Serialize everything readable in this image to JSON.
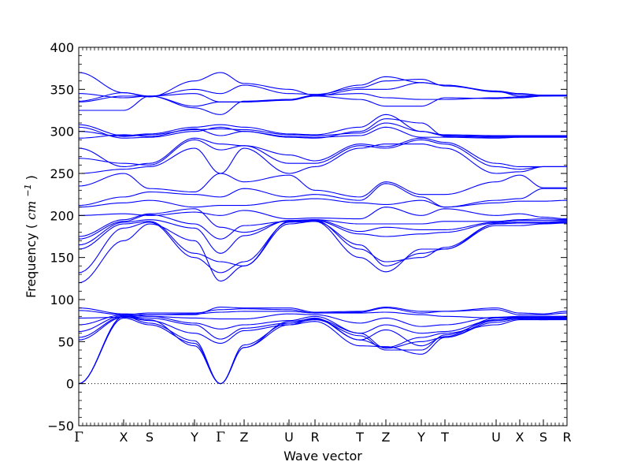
{
  "chart_data": {
    "type": "line",
    "title": "",
    "xlabel": "Wave vector",
    "ylabel": "Frequency",
    "ylabel_unit": "cm",
    "ylabel_unit_exponent": "−1",
    "ylim": [
      -50,
      400
    ],
    "yticks": [
      -50,
      0,
      50,
      100,
      150,
      200,
      250,
      300,
      350,
      400
    ],
    "ytick_labels": [
      "−50",
      "0",
      "50",
      "100",
      "150",
      "200",
      "250",
      "300",
      "350",
      "400"
    ],
    "zero_line": true,
    "grid": false,
    "line_color": "#0000ff",
    "high_symmetry_points": [
      {
        "label": "Γ",
        "x": 0.0
      },
      {
        "label": "X",
        "x": 0.57
      },
      {
        "label": "S",
        "x": 0.9
      },
      {
        "label": "Y",
        "x": 1.47
      },
      {
        "label": "Γ",
        "x": 1.8
      },
      {
        "label": "Z",
        "x": 2.1
      },
      {
        "label": "U",
        "x": 2.67
      },
      {
        "label": "R",
        "x": 3.0
      },
      {
        "label": "T",
        "x": 3.57
      },
      {
        "label": "Z",
        "x": 3.9
      },
      {
        "label": "Y",
        "x": 4.35
      },
      {
        "label": "T",
        "x": 4.65
      },
      {
        "label": "U",
        "x": 5.3
      },
      {
        "label": "X",
        "x": 5.6
      },
      {
        "label": "S",
        "x": 5.9
      },
      {
        "label": "R",
        "x": 6.2
      }
    ],
    "series": [
      {
        "values": [
          0,
          78,
          70,
          48,
          0,
          43,
          70,
          77,
          52,
          43,
          55,
          60,
          70,
          76,
          76,
          76
        ]
      },
      {
        "values": [
          0,
          80,
          72,
          51,
          0,
          46,
          72,
          76,
          57,
          40,
          40,
          58,
          76,
          78,
          77,
          77
        ]
      },
      {
        "values": [
          0,
          80,
          76,
          45,
          0,
          43,
          74,
          77,
          60,
          42,
          50,
          55,
          75,
          78,
          77,
          78
        ]
      },
      {
        "values": [
          52,
          79,
          75,
          60,
          48,
          63,
          70,
          74,
          45,
          44,
          35,
          55,
          73,
          77,
          76,
          77
        ]
      },
      {
        "values": [
          55,
          80,
          78,
          70,
          53,
          66,
          72,
          78,
          52,
          64,
          45,
          56,
          78,
          79,
          78,
          78
        ]
      },
      {
        "values": [
          62,
          81,
          80,
          72,
          65,
          70,
          75,
          80,
          60,
          70,
          60,
          62,
          76,
          79,
          79,
          79
        ]
      },
      {
        "values": [
          70,
          82,
          80,
          78,
          77,
          77,
          83,
          82,
          72,
          78,
          68,
          70,
          79,
          80,
          80,
          80
        ]
      },
      {
        "values": [
          78,
          79,
          82,
          83,
          85,
          86,
          86,
          84,
          84,
          85,
          82,
          80,
          78,
          80,
          80,
          80
        ]
      },
      {
        "values": [
          87,
          82,
          84,
          84,
          88,
          89,
          88,
          84,
          85,
          90,
          84,
          86,
          88,
          82,
          82,
          84
        ]
      },
      {
        "values": [
          90,
          83,
          82,
          82,
          91,
          90,
          90,
          85,
          86,
          91,
          86,
          86,
          90,
          84,
          83,
          86
        ]
      },
      {
        "values": [
          120,
          170,
          190,
          170,
          122,
          140,
          190,
          193,
          165,
          140,
          155,
          160,
          190,
          191,
          191,
          191
        ]
      },
      {
        "values": [
          132,
          185,
          192,
          150,
          132,
          145,
          192,
          193,
          150,
          133,
          160,
          160,
          188,
          188,
          190,
          191
        ]
      },
      {
        "values": [
          160,
          190,
          193,
          155,
          145,
          140,
          193,
          194,
          160,
          145,
          150,
          162,
          190,
          191,
          191,
          192
        ]
      },
      {
        "values": [
          165,
          192,
          195,
          185,
          155,
          176,
          194,
          194,
          178,
          175,
          178,
          180,
          191,
          192,
          192,
          193
        ]
      },
      {
        "values": [
          172,
          193,
          201,
          190,
          172,
          188,
          193,
          195,
          181,
          186,
          183,
          183,
          192,
          194,
          194,
          194
        ]
      },
      {
        "values": [
          175,
          195,
          202,
          208,
          186,
          180,
          194,
          195,
          190,
          190,
          190,
          193,
          193,
          195,
          196,
          195
        ]
      },
      {
        "values": [
          200,
          202,
          200,
          204,
          200,
          206,
          196,
          197,
          196,
          210,
          200,
          208,
          200,
          202,
          198,
          196
        ]
      },
      {
        "values": [
          210,
          215,
          218,
          210,
          212,
          212,
          218,
          220,
          215,
          213,
          218,
          210,
          215,
          217,
          217,
          218
        ]
      },
      {
        "values": [
          212,
          222,
          228,
          225,
          222,
          232,
          222,
          225,
          218,
          238,
          222,
          210,
          218,
          220,
          232,
          232
        ]
      },
      {
        "values": [
          235,
          250,
          232,
          228,
          250,
          240,
          248,
          230,
          222,
          240,
          225,
          225,
          240,
          248,
          233,
          233
        ]
      },
      {
        "values": [
          250,
          255,
          258,
          280,
          250,
          280,
          250,
          258,
          280,
          285,
          285,
          280,
          250,
          252,
          258,
          258
        ]
      },
      {
        "values": [
          268,
          262,
          260,
          290,
          278,
          283,
          262,
          262,
          283,
          280,
          290,
          285,
          258,
          255,
          258,
          258
        ]
      },
      {
        "values": [
          280,
          258,
          262,
          292,
          285,
          283,
          272,
          265,
          285,
          282,
          292,
          287,
          262,
          258,
          258,
          258
        ]
      },
      {
        "values": [
          292,
          296,
          294,
          303,
          295,
          300,
          294,
          293,
          295,
          305,
          293,
          293,
          292,
          293,
          293,
          293
        ]
      },
      {
        "values": [
          300,
          294,
          296,
          302,
          303,
          302,
          296,
          295,
          298,
          310,
          300,
          295,
          294,
          294,
          294,
          294
        ]
      },
      {
        "values": [
          305,
          292,
          293,
          300,
          305,
          300,
          293,
          292,
          300,
          315,
          310,
          294,
          293,
          293,
          293,
          293
        ]
      },
      {
        "values": [
          308,
          295,
          297,
          305,
          308,
          305,
          297,
          296,
          305,
          320,
          300,
          296,
          295,
          295,
          295,
          295
        ]
      },
      {
        "values": [
          325,
          325,
          342,
          330,
          335,
          335,
          337,
          342,
          338,
          330,
          330,
          340,
          339,
          340,
          342,
          342
        ]
      },
      {
        "values": [
          335,
          342,
          342,
          328,
          320,
          336,
          338,
          343,
          345,
          340,
          338,
          338,
          340,
          341,
          342,
          343
        ]
      },
      {
        "values": [
          336,
          346,
          342,
          345,
          335,
          335,
          338,
          342,
          350,
          350,
          358,
          355,
          348,
          342,
          343,
          343
        ]
      },
      {
        "values": [
          345,
          340,
          342,
          350,
          345,
          355,
          345,
          344,
          352,
          360,
          362,
          354,
          348,
          345,
          343,
          343
        ]
      },
      {
        "values": [
          370,
          346,
          341,
          360,
          370,
          357,
          350,
          343,
          355,
          365,
          358,
          355,
          347,
          344,
          343,
          343
        ]
      }
    ]
  }
}
